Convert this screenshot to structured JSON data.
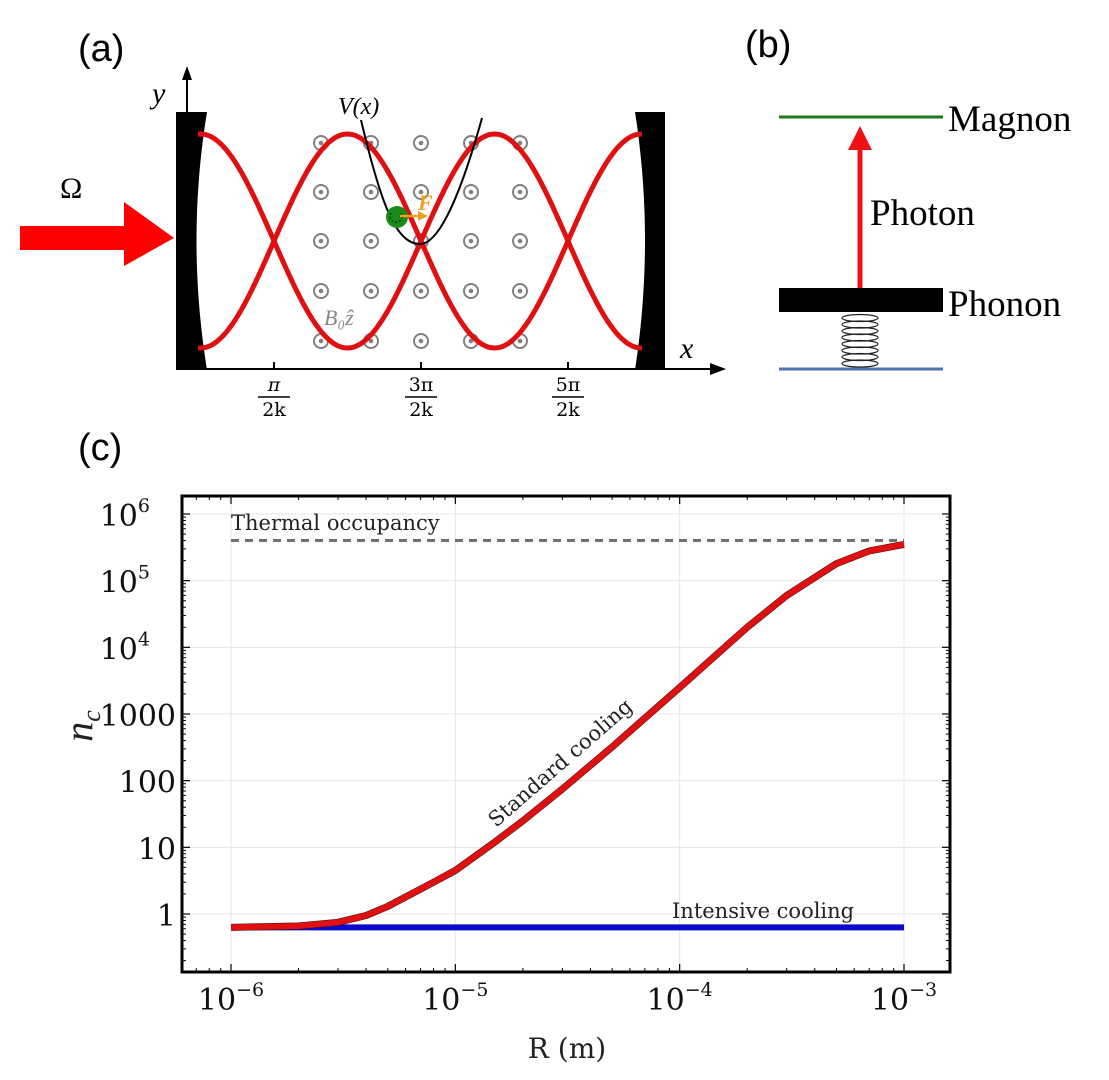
{
  "panels": {
    "a": {
      "label": "(a)",
      "pump_symbol": "Ω",
      "y_axis_label": "y",
      "x_axis_label": "x",
      "potential_label": "V(x)",
      "force_label": "F",
      "field_label": "B₀ẑ",
      "x_ticks": [
        {
          "num": "π",
          "den": "2k"
        },
        {
          "num": "3π",
          "den": "2k"
        },
        {
          "num": "5π",
          "den": "2k"
        }
      ],
      "colors": {
        "standing_wave": "#e01010",
        "pump_arrow": "#ff0000",
        "particle": "#1a8a1a",
        "force": "#f0a020",
        "field_marker": "#808080"
      }
    },
    "b": {
      "label": "(b)",
      "levels": [
        {
          "name": "Magnon",
          "color": "#1e7a1e"
        },
        {
          "name": "Phonon",
          "color": "#000000"
        },
        {
          "name": "ground",
          "color": "#4a72b0"
        }
      ],
      "transition_label": "Photon",
      "transition_color": "#ee1111"
    },
    "c": {
      "label": "(c)"
    }
  },
  "chart_data": {
    "type": "line",
    "title": "",
    "xlabel": "R (m)",
    "ylabel": "n_c",
    "xscale": "log",
    "yscale": "log",
    "xlim": [
      5.5e-07,
      0.0016
    ],
    "ylim": [
      0.17,
      1100000.0
    ],
    "grid": true,
    "x_ticks": [
      {
        "value": 1e-06,
        "base": "10",
        "exp": "−6"
      },
      {
        "value": 1e-05,
        "base": "10",
        "exp": "−5"
      },
      {
        "value": 0.0001,
        "base": "10",
        "exp": "−4"
      },
      {
        "value": 0.001,
        "base": "10",
        "exp": "−3"
      }
    ],
    "y_ticks": [
      {
        "value": 1,
        "label": "1"
      },
      {
        "value": 10,
        "label": "10"
      },
      {
        "value": 100,
        "label": "100"
      },
      {
        "value": 1000,
        "label": "1000"
      },
      {
        "value": 10000,
        "base": "10",
        "exp": "4"
      },
      {
        "value": 100000,
        "base": "10",
        "exp": "5"
      },
      {
        "value": 1000000,
        "base": "10",
        "exp": "6"
      }
    ],
    "series": [
      {
        "name": "Standard cooling",
        "color": "#e01010",
        "x": [
          1e-06,
          2e-06,
          3e-06,
          4e-06,
          5e-06,
          6e-06,
          8e-06,
          1e-05,
          1.5e-05,
          2e-05,
          3e-05,
          5e-05,
          0.0001,
          0.0002,
          0.0003,
          0.0005,
          0.0007,
          0.001
        ],
        "y": [
          0.63,
          0.66,
          0.75,
          0.95,
          1.3,
          1.8,
          3.0,
          4.5,
          12,
          25,
          75,
          320,
          2500,
          20000,
          60000,
          180000,
          280000,
          350000
        ]
      },
      {
        "name": "Intensive cooling",
        "color": "#0a0acc",
        "x": [
          1e-06,
          0.001
        ],
        "y": [
          0.63,
          0.63
        ]
      },
      {
        "name": "Thermal occupancy",
        "color": "#707070",
        "style": "dashed",
        "x": [
          1e-06,
          0.001
        ],
        "y": [
          400000,
          400000
        ]
      }
    ],
    "annotations": [
      {
        "text": "Thermal occupancy",
        "near": "dashed line, top-left"
      },
      {
        "text": "Standard cooling",
        "near": "red curve, rotated along slope"
      },
      {
        "text": "Intensive cooling",
        "near": "blue line, right"
      }
    ]
  }
}
